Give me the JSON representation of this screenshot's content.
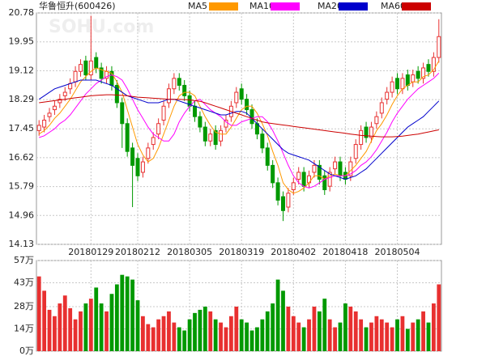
{
  "chart_data": {
    "type": "candlestick",
    "title": "华鲁恒升(600426)",
    "watermark": "SOHU.com",
    "categories": [
      null,
      null,
      null,
      null,
      null,
      null,
      null,
      null,
      null,
      null,
      "20180129",
      null,
      null,
      null,
      null,
      null,
      null,
      null,
      null,
      "20180212",
      null,
      null,
      null,
      null,
      null,
      null,
      null,
      null,
      null,
      "20180305",
      null,
      null,
      null,
      null,
      null,
      null,
      null,
      null,
      null,
      "20180319",
      null,
      null,
      null,
      null,
      null,
      null,
      null,
      null,
      null,
      "20180402",
      null,
      null,
      null,
      null,
      null,
      null,
      null,
      null,
      null,
      "20180418",
      null,
      null,
      null,
      null,
      null,
      null,
      null,
      null,
      null,
      "20180504",
      null,
      null,
      null,
      null,
      null,
      null,
      null,
      null
    ],
    "open": [
      17.4,
      17.5,
      17.8,
      18.0,
      18.2,
      18.4,
      18.6,
      18.8,
      19.1,
      19.4,
      19.0,
      19.5,
      19.2,
      18.9,
      19.1,
      18.7,
      18.2,
      17.6,
      16.9,
      16.6,
      16.2,
      16.6,
      17.0,
      17.3,
      17.7,
      18.2,
      18.6,
      18.9,
      18.7,
      18.4,
      18.1,
      17.8,
      17.5,
      17.1,
      17.4,
      17.1,
      17.5,
      17.8,
      18.2,
      18.6,
      18.3,
      18.0,
      17.6,
      17.3,
      16.9,
      16.4,
      15.9,
      15.5,
      15.2,
      15.7,
      16.0,
      16.2,
      15.9,
      16.2,
      16.4,
      16.1,
      15.8,
      16.3,
      16.5,
      16.2,
      16.1,
      16.6,
      17.0,
      17.5,
      17.2,
      17.6,
      17.9,
      18.3,
      18.5,
      18.9,
      18.6,
      19.0,
      18.8,
      19.1,
      18.9,
      19.3,
      19.1,
      19.5
    ],
    "high": [
      17.7,
      17.85,
      18.05,
      18.25,
      18.45,
      18.65,
      18.9,
      19.25,
      19.45,
      19.55,
      20.7,
      19.65,
      19.35,
      19.25,
      19.25,
      18.85,
      18.35,
      17.75,
      17.05,
      16.75,
      16.65,
      17.05,
      17.35,
      17.75,
      18.25,
      18.75,
      19.05,
      19.05,
      18.85,
      18.55,
      18.25,
      17.95,
      17.65,
      17.45,
      17.55,
      17.55,
      17.85,
      18.25,
      18.65,
      18.75,
      18.45,
      18.15,
      17.75,
      17.45,
      17.05,
      16.55,
      16.05,
      15.65,
      15.75,
      16.05,
      16.35,
      16.35,
      16.25,
      16.55,
      16.55,
      16.25,
      16.35,
      16.65,
      16.65,
      16.35,
      16.65,
      17.15,
      17.55,
      17.65,
      17.65,
      17.95,
      18.35,
      18.65,
      18.95,
      19.05,
      19.05,
      19.15,
      19.15,
      19.25,
      19.35,
      19.45,
      19.65,
      20.6
    ],
    "low": [
      17.25,
      17.35,
      17.65,
      17.85,
      18.05,
      18.25,
      18.45,
      18.65,
      18.95,
      18.85,
      18.85,
      19.05,
      18.75,
      18.75,
      18.55,
      18.05,
      16.9,
      16.65,
      15.2,
      15.95,
      16.05,
      16.45,
      16.85,
      17.15,
      17.55,
      18.05,
      18.45,
      18.55,
      18.25,
      17.95,
      17.65,
      17.35,
      16.95,
      16.95,
      16.85,
      16.95,
      17.35,
      17.65,
      18.05,
      18.15,
      17.85,
      17.45,
      17.15,
      16.75,
      16.25,
      15.75,
      15.25,
      14.8,
      15.05,
      15.55,
      15.85,
      15.65,
      15.75,
      16.05,
      15.85,
      15.55,
      15.65,
      16.15,
      15.95,
      15.85,
      15.95,
      16.45,
      16.85,
      17.05,
      17.05,
      17.45,
      17.75,
      18.15,
      18.35,
      18.45,
      18.45,
      18.55,
      18.65,
      18.75,
      18.75,
      18.95,
      18.95,
      19.35
    ],
    "close": [
      17.55,
      17.7,
      17.9,
      18.1,
      18.3,
      18.5,
      18.75,
      19.1,
      19.3,
      19.0,
      19.4,
      19.2,
      18.9,
      19.1,
      18.7,
      18.2,
      17.6,
      16.8,
      16.4,
      16.1,
      16.5,
      16.9,
      17.2,
      17.6,
      18.1,
      18.6,
      18.9,
      18.7,
      18.4,
      18.1,
      17.8,
      17.5,
      17.1,
      17.3,
      17.0,
      17.4,
      17.7,
      18.1,
      18.5,
      18.3,
      18.0,
      17.6,
      17.3,
      16.9,
      16.4,
      15.9,
      15.4,
      15.1,
      15.6,
      15.9,
      16.2,
      15.8,
      16.1,
      16.4,
      16.0,
      15.7,
      16.2,
      16.5,
      16.1,
      16.0,
      16.5,
      17.0,
      17.4,
      17.2,
      17.5,
      17.8,
      18.2,
      18.5,
      18.8,
      18.6,
      18.9,
      18.7,
      19.0,
      18.9,
      19.2,
      19.1,
      19.5,
      20.1
    ],
    "up_color": "#e83030",
    "down_color": "#009900",
    "ma": [
      {
        "name": "MA5",
        "color": "#ff9900",
        "values": [
          17.3,
          17.4,
          17.55,
          17.75,
          17.9,
          18.1,
          18.3,
          18.55,
          18.8,
          18.95,
          19.1,
          19.2,
          19.15,
          19.1,
          19.05,
          18.8,
          18.5,
          18.0,
          17.5,
          17.0,
          16.7,
          16.5,
          16.6,
          16.9,
          17.3,
          17.7,
          18.1,
          18.4,
          18.5,
          18.5,
          18.4,
          18.1,
          17.8,
          17.55,
          17.35,
          17.3,
          17.3,
          17.5,
          17.75,
          18.0,
          18.1,
          18.1,
          17.9,
          17.6,
          17.25,
          16.8,
          16.4,
          15.9,
          15.7,
          15.6,
          15.65,
          15.75,
          15.9,
          16.1,
          16.1,
          16.0,
          16.1,
          16.15,
          16.1,
          16.1,
          16.25,
          16.4,
          16.6,
          16.8,
          17.1,
          17.4,
          17.6,
          17.85,
          18.15,
          18.4,
          18.6,
          18.7,
          18.8,
          18.8,
          18.95,
          19.0,
          19.15,
          19.4
        ]
      },
      {
        "name": "MA10",
        "color": "#ff00ff",
        "values": [
          17.2,
          17.25,
          17.35,
          17.45,
          17.6,
          17.7,
          17.85,
          18.05,
          18.25,
          18.45,
          18.6,
          18.75,
          18.85,
          18.95,
          19.0,
          18.95,
          18.85,
          18.6,
          18.3,
          18.0,
          17.75,
          17.5,
          17.3,
          17.2,
          17.1,
          17.1,
          17.3,
          17.65,
          17.9,
          18.1,
          18.25,
          18.3,
          18.15,
          18.0,
          17.9,
          17.8,
          17.65,
          17.55,
          17.55,
          17.65,
          17.7,
          17.75,
          17.8,
          17.8,
          17.65,
          17.4,
          17.1,
          16.75,
          16.4,
          16.1,
          15.9,
          15.8,
          15.75,
          15.8,
          15.9,
          16.0,
          16.05,
          16.1,
          16.1,
          16.1,
          16.15,
          16.25,
          16.4,
          16.5,
          16.65,
          16.85,
          17.1,
          17.35,
          17.65,
          17.9,
          18.1,
          18.3,
          18.45,
          18.6,
          18.7,
          18.8,
          18.9,
          19.05
        ]
      },
      {
        "name": "MA20",
        "color": "#0000cc",
        "values": [
          18.3,
          18.4,
          18.5,
          18.6,
          18.65,
          18.7,
          18.75,
          18.8,
          18.85,
          18.85,
          18.85,
          18.85,
          18.8,
          18.75,
          18.7,
          18.6,
          18.5,
          18.4,
          18.35,
          18.3,
          18.25,
          18.2,
          18.2,
          18.2,
          18.25,
          18.3,
          18.3,
          18.25,
          18.2,
          18.15,
          18.1,
          18.05,
          18.0,
          17.95,
          17.9,
          17.85,
          17.85,
          17.9,
          17.95,
          17.95,
          17.9,
          17.75,
          17.6,
          17.45,
          17.3,
          17.15,
          17.0,
          16.85,
          16.75,
          16.7,
          16.65,
          16.6,
          16.55,
          16.45,
          16.35,
          16.25,
          16.15,
          16.1,
          16.05,
          16.0,
          16.05,
          16.1,
          16.2,
          16.3,
          16.45,
          16.6,
          16.75,
          16.9,
          17.05,
          17.2,
          17.35,
          17.5,
          17.6,
          17.7,
          17.8,
          17.95,
          18.1,
          18.25
        ]
      },
      {
        "name": "MA60",
        "color": "#cc0000",
        "values": [
          18.2,
          18.22,
          18.24,
          18.26,
          18.28,
          18.3,
          18.32,
          18.34,
          18.36,
          18.38,
          18.4,
          18.41,
          18.42,
          18.43,
          18.43,
          18.42,
          18.41,
          18.4,
          18.38,
          18.36,
          18.35,
          18.34,
          18.33,
          18.32,
          18.31,
          18.3,
          18.3,
          18.3,
          18.29,
          18.28,
          18.26,
          18.24,
          18.2,
          18.15,
          18.1,
          18.05,
          18.0,
          17.95,
          17.9,
          17.85,
          17.8,
          17.75,
          17.7,
          17.65,
          17.62,
          17.6,
          17.58,
          17.56,
          17.54,
          17.52,
          17.5,
          17.48,
          17.46,
          17.44,
          17.42,
          17.4,
          17.38,
          17.36,
          17.34,
          17.32,
          17.3,
          17.28,
          17.26,
          17.25,
          17.24,
          17.23,
          17.22,
          17.22,
          17.22,
          17.23,
          17.24,
          17.26,
          17.28,
          17.3,
          17.33,
          17.36,
          17.39,
          17.42
        ]
      }
    ],
    "ylim": [
      14.13,
      20.78
    ],
    "yticks": [
      20.78,
      19.95,
      19.12,
      18.29,
      17.45,
      16.62,
      15.79,
      14.96,
      14.13
    ],
    "grid": true,
    "volume": {
      "values": [
        47,
        38,
        26,
        22,
        30,
        35,
        27,
        20,
        25,
        30,
        33,
        40,
        30,
        25,
        36,
        42,
        48,
        47,
        45,
        32,
        22,
        17,
        15,
        20,
        22,
        25,
        18,
        15,
        13,
        20,
        24,
        26,
        28,
        25,
        20,
        18,
        15,
        22,
        28,
        20,
        18,
        13,
        15,
        20,
        25,
        30,
        45,
        38,
        28,
        22,
        18,
        15,
        20,
        28,
        25,
        33,
        20,
        15,
        18,
        30,
        28,
        25,
        20,
        15,
        18,
        22,
        20,
        18,
        15,
        20,
        22,
        14,
        18,
        20,
        25,
        18,
        30,
        42
      ],
      "ylim": [
        0,
        57
      ],
      "yticks": [
        {
          "value": 57,
          "label": "57万"
        },
        {
          "value": 43,
          "label": "43万"
        },
        {
          "value": 28,
          "label": "28万"
        },
        {
          "value": 14,
          "label": "14万"
        },
        {
          "value": 0,
          "label": "0万"
        }
      ]
    }
  }
}
